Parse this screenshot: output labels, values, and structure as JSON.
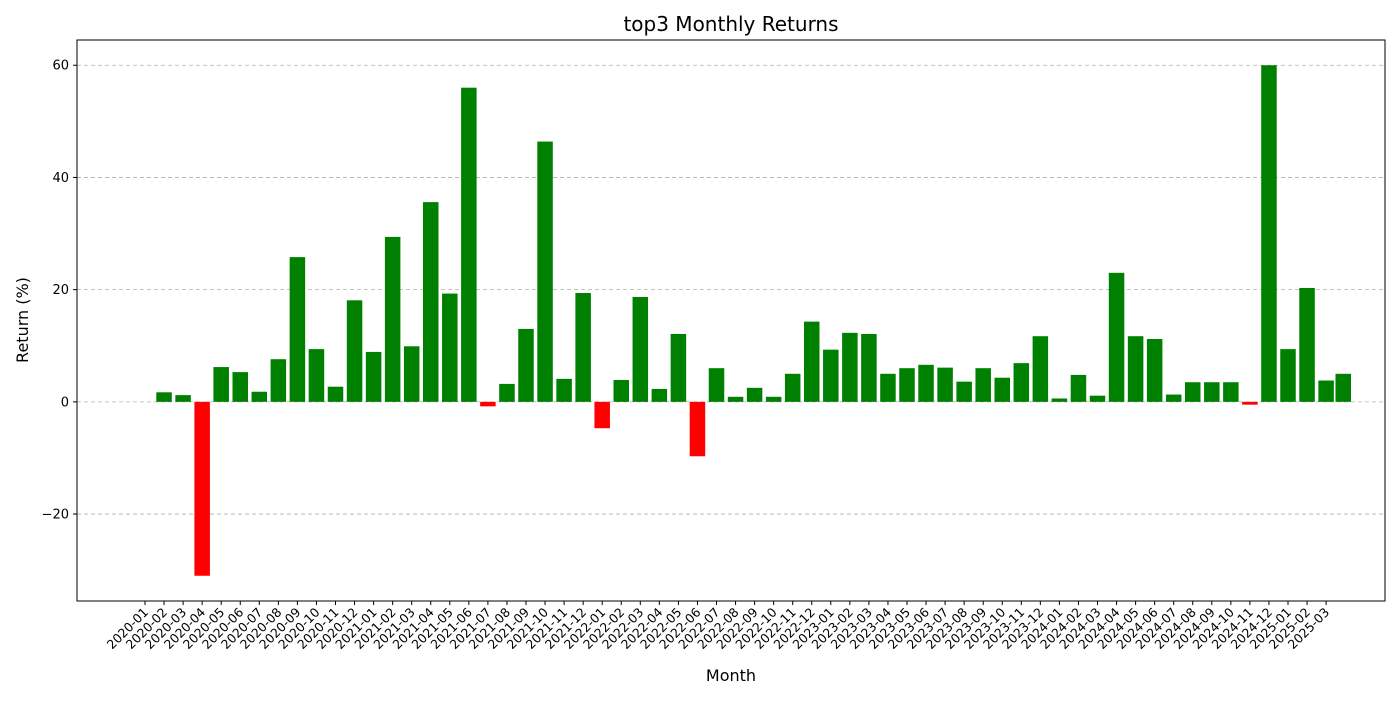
{
  "colors": {
    "positive": "#008000",
    "negative": "#ff0000",
    "grid": "#b0b0b0",
    "axis": "#000000"
  },
  "chart_data": {
    "type": "bar",
    "title": "top3 Monthly Returns",
    "xlabel": "Month",
    "ylabel": "Return (%)",
    "ylim": [
      -35.5,
      64.5
    ],
    "yticks": [
      -20,
      0,
      20,
      40,
      60
    ],
    "ytick_labels": [
      "−20",
      "0",
      "20",
      "40",
      "60"
    ],
    "grid": "y-dashed",
    "categories": [
      "2020-01",
      "2020-02",
      "2020-03",
      "2020-04",
      "2020-05",
      "2020-06",
      "2020-07",
      "2020-08",
      "2020-09",
      "2020-10",
      "2020-11",
      "2020-12",
      "2021-01",
      "2021-02",
      "2021-03",
      "2021-04",
      "2021-05",
      "2021-06",
      "2021-07",
      "2021-08",
      "2021-09",
      "2021-10",
      "2021-11",
      "2021-12",
      "2022-01",
      "2022-02",
      "2022-03",
      "2022-04",
      "2022-05",
      "2022-06",
      "2022-07",
      "2022-08",
      "2022-09",
      "2022-10",
      "2022-11",
      "2022-12",
      "2023-01",
      "2023-02",
      "2023-03",
      "2023-04",
      "2023-05",
      "2023-06",
      "2023-07",
      "2023-08",
      "2023-09",
      "2023-10",
      "2023-11",
      "2023-12",
      "2024-01",
      "2024-02",
      "2024-03",
      "2024-04",
      "2024-05",
      "2024-06",
      "2024-07",
      "2024-08",
      "2024-09",
      "2024-10",
      "2024-11",
      "2024-12",
      "2025-01",
      "2025-02",
      "2025-03"
    ],
    "bars": [
      {
        "x": "2020-02",
        "value": 1.7
      },
      {
        "x": "2020-03",
        "value": 1.2
      },
      {
        "x": "2020-04",
        "value": -31.0
      },
      {
        "x": "2020-05",
        "value": 6.2
      },
      {
        "x": "2020-06",
        "value": 5.3
      },
      {
        "x": "2020-07",
        "value": 1.8
      },
      {
        "x": "2020-08",
        "value": 7.6
      },
      {
        "x": "2020-09",
        "value": 25.8
      },
      {
        "x": "2020-10",
        "value": 9.4
      },
      {
        "x": "2020-11",
        "value": 2.7
      },
      {
        "x": "2020-12",
        "value": 18.1
      },
      {
        "x": "2021-01",
        "value": 8.9
      },
      {
        "x": "2021-02",
        "value": 29.4
      },
      {
        "x": "2021-03",
        "value": 9.9
      },
      {
        "x": "2021-04",
        "value": 35.6
      },
      {
        "x": "2021-05",
        "value": 19.3
      },
      {
        "x": "2021-06",
        "value": 56.0
      },
      {
        "x": "2021-07",
        "value": -0.8
      },
      {
        "x": "2021-08",
        "value": 3.2
      },
      {
        "x": "2021-09",
        "value": 13.0
      },
      {
        "x": "2021-10",
        "value": 46.4
      },
      {
        "x": "2021-11",
        "value": 4.1
      },
      {
        "x": "2021-12",
        "value": 19.4
      },
      {
        "x": "2022-01",
        "value": -4.7
      },
      {
        "x": "2022-02",
        "value": 3.9
      },
      {
        "x": "2022-03",
        "value": 18.7
      },
      {
        "x": "2022-04",
        "value": 2.3
      },
      {
        "x": "2022-05",
        "value": 12.1
      },
      {
        "x": "2022-06",
        "value": -9.7
      },
      {
        "x": "2022-07",
        "value": 6.0
      },
      {
        "x": "2022-08",
        "value": 0.9
      },
      {
        "x": "2022-09",
        "value": 2.5
      },
      {
        "x": "2022-10",
        "value": 0.9
      },
      {
        "x": "2022-11",
        "value": 5.0
      },
      {
        "x": "2022-12",
        "value": 14.3
      },
      {
        "x": "2023-01",
        "value": 9.3
      },
      {
        "x": "2023-02",
        "value": 12.3
      },
      {
        "x": "2023-03",
        "value": 12.1
      },
      {
        "x": "2023-04",
        "value": 5.0
      },
      {
        "x": "2023-05",
        "value": 6.0
      },
      {
        "x": "2023-06",
        "value": 6.6
      },
      {
        "x": "2023-07",
        "value": 6.1
      },
      {
        "x": "2023-08",
        "value": 3.6
      },
      {
        "x": "2023-09",
        "value": 6.0
      },
      {
        "x": "2023-10",
        "value": 4.3
      },
      {
        "x": "2023-11",
        "value": 6.9
      },
      {
        "x": "2023-12",
        "value": 11.7
      },
      {
        "x": "2024-01",
        "value": 0.6
      },
      {
        "x": "2024-02",
        "value": 4.8
      },
      {
        "x": "2024-03",
        "value": 1.1
      },
      {
        "x": "2024-04",
        "value": 23.0
      },
      {
        "x": "2024-05",
        "value": 11.7
      },
      {
        "x": "2024-06",
        "value": 11.2
      },
      {
        "x": "2024-07",
        "value": 1.3
      },
      {
        "x": "2024-08",
        "value": 3.5
      },
      {
        "x": "2024-09",
        "value": 3.5
      },
      {
        "x": "2024-10",
        "value": 3.5
      },
      {
        "x": "2024-11",
        "value": -0.5
      },
      {
        "x": "2024-12",
        "value": 60.0
      },
      {
        "x": "2025-01",
        "value": 9.4
      },
      {
        "x": "2025-02",
        "value": 20.3
      },
      {
        "x": "2025-03",
        "value": 3.8
      },
      {
        "x": "2025-03",
        "value": 5.0,
        "offset": 0.9
      }
    ]
  }
}
